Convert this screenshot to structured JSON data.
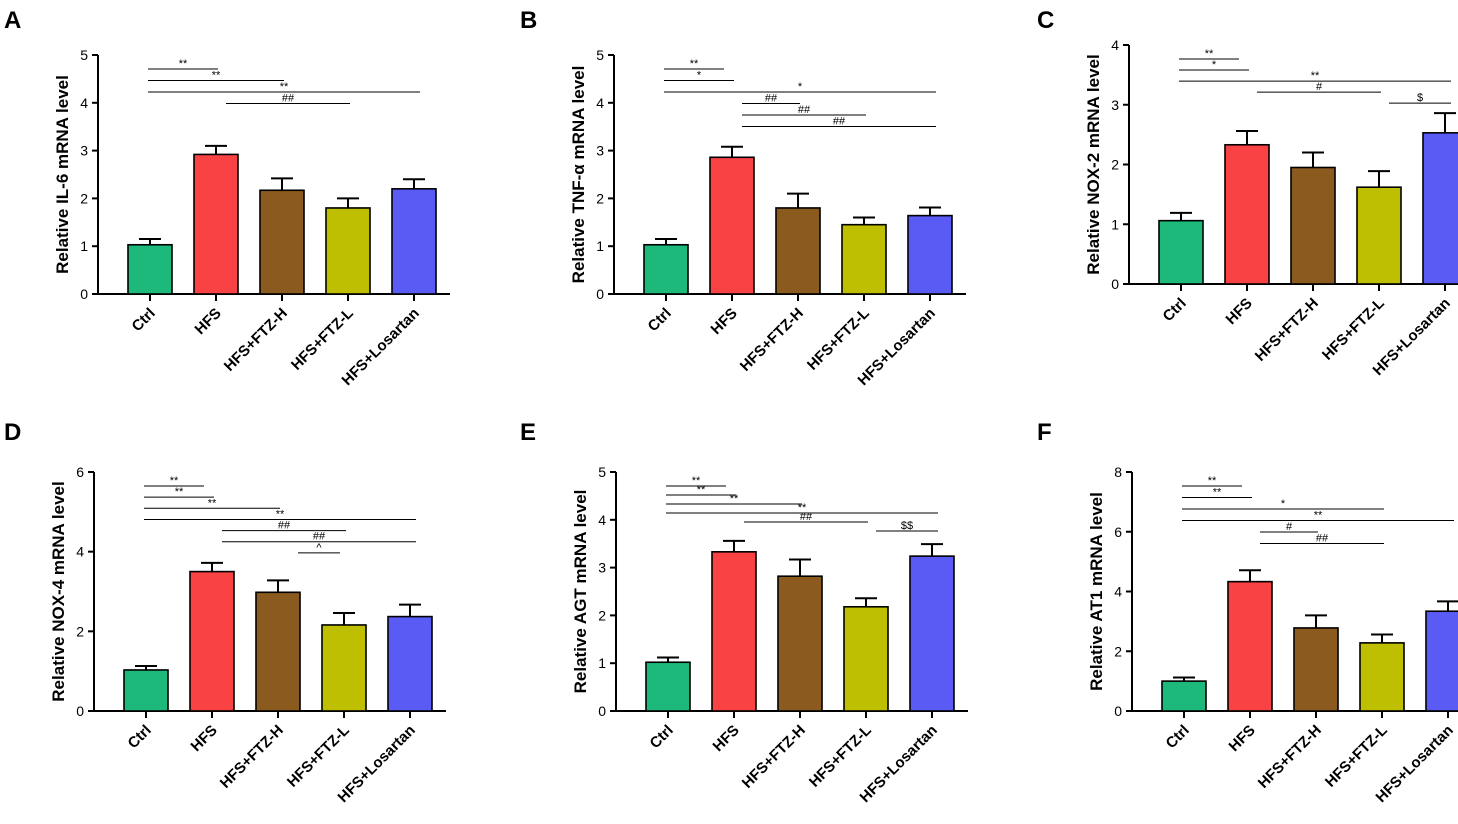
{
  "colors": {
    "Ctrl": "#1DB97A",
    "HFS": "#F94243",
    "HFS+FTZ-H": "#8B5A1E",
    "HFS+FTZ-L": "#BDBF00",
    "HFS+Losartan": "#5A5AF5"
  },
  "chart_data": [
    {
      "panel": "A",
      "type": "bar",
      "categories": [
        "Ctrl",
        "HFS",
        "HFS+FTZ-H",
        "HFS+FTZ-L",
        "HFS+Losartan"
      ],
      "values": [
        1.03,
        2.92,
        2.17,
        1.8,
        2.2
      ],
      "errors": [
        0.12,
        0.18,
        0.25,
        0.2,
        0.2
      ],
      "ylabel": "Relative IL-6 mRNA level",
      "ylim": [
        0,
        5
      ],
      "yticks": [
        0,
        1,
        2,
        3,
        4,
        5
      ],
      "annotations": [
        {
          "from": 0,
          "to": 2,
          "label": "**"
        },
        {
          "from": 0,
          "to": 3,
          "label": "**"
        },
        {
          "from": 0,
          "to": 5,
          "label": "**"
        },
        {
          "from": 2,
          "to": 4,
          "label": "##"
        }
      ]
    },
    {
      "panel": "B",
      "type": "bar",
      "categories": [
        "Ctrl",
        "HFS",
        "HFS+FTZ-H",
        "HFS+FTZ-L",
        "HFS+Losartan"
      ],
      "values": [
        1.03,
        2.86,
        1.8,
        1.45,
        1.64
      ],
      "errors": [
        0.12,
        0.22,
        0.3,
        0.15,
        0.17
      ],
      "ylabel": "Relative TNF-α mRNA level",
      "ylim": [
        0,
        5
      ],
      "yticks": [
        0,
        1,
        2,
        3,
        4,
        5
      ],
      "annotations": [
        {
          "from": 0,
          "to": 1,
          "label": "**"
        },
        {
          "from": 0,
          "to": 2,
          "label": "*"
        },
        {
          "from": 0,
          "to": 5,
          "label": "*"
        },
        {
          "from": 2,
          "to": 3,
          "label": "##"
        },
        {
          "from": 2,
          "to": 4,
          "label": "##"
        },
        {
          "from": 2,
          "to": 5,
          "label": "##"
        }
      ]
    },
    {
      "panel": "C",
      "type": "bar",
      "categories": [
        "Ctrl",
        "HFS",
        "HFS+FTZ-H",
        "HFS+FTZ-L",
        "HFS+Losartan"
      ],
      "values": [
        1.06,
        2.33,
        1.95,
        1.62,
        2.53
      ],
      "errors": [
        0.13,
        0.23,
        0.25,
        0.27,
        0.33
      ],
      "ylabel": "Relative NOX-2 mRNA level",
      "ylim": [
        0,
        4
      ],
      "yticks": [
        0,
        1,
        2,
        3,
        4
      ],
      "annotations": [
        {
          "from": 0,
          "to": 1,
          "label": "**"
        },
        {
          "from": 0,
          "to": 2,
          "label": "*"
        },
        {
          "from": 0,
          "to": 5,
          "label": "**"
        },
        {
          "from": 2,
          "to": 4,
          "label": "#"
        },
        {
          "from": 4,
          "to": 5,
          "label": "$"
        }
      ]
    },
    {
      "panel": "D",
      "type": "bar",
      "categories": [
        "Ctrl",
        "HFS",
        "HFS+FTZ-H",
        "HFS+FTZ-L",
        "HFS+Losartan"
      ],
      "values": [
        1.03,
        3.5,
        2.98,
        2.16,
        2.37
      ],
      "errors": [
        0.1,
        0.22,
        0.3,
        0.3,
        0.3
      ],
      "ylabel": "Relative NOX-4 mRNA level",
      "ylim": [
        0,
        6
      ],
      "yticks": [
        0,
        2,
        4,
        6
      ],
      "annotations": [
        {
          "from": 0,
          "to": 1,
          "label": "**"
        },
        {
          "from": 0,
          "to": 2,
          "label": "**"
        },
        {
          "from": 0,
          "to": 3,
          "label": "**"
        },
        {
          "from": 0,
          "to": 5,
          "label": "**"
        },
        {
          "from": 2,
          "to": 4,
          "label": "##"
        },
        {
          "from": 2,
          "to": 5,
          "label": "##"
        },
        {
          "from": 3,
          "to": 4,
          "label": "^"
        }
      ]
    },
    {
      "panel": "E",
      "type": "bar",
      "categories": [
        "Ctrl",
        "HFS",
        "HFS+FTZ-H",
        "HFS+FTZ-L",
        "HFS+Losartan"
      ],
      "values": [
        1.02,
        3.33,
        2.82,
        2.18,
        3.24
      ],
      "errors": [
        0.1,
        0.23,
        0.35,
        0.18,
        0.25
      ],
      "ylabel": "Relative AGT mRNA level",
      "ylim": [
        0,
        5
      ],
      "yticks": [
        0,
        1,
        2,
        3,
        4,
        5
      ],
      "annotations": [
        {
          "from": 0,
          "to": 1,
          "label": "**"
        },
        {
          "from": 0,
          "to": 2,
          "label": "**"
        },
        {
          "from": 0,
          "to": 3,
          "label": "**"
        },
        {
          "from": 0,
          "to": 5,
          "label": "**"
        },
        {
          "from": 2,
          "to": 4,
          "label": "##"
        },
        {
          "from": 4,
          "to": 5,
          "label": "$$"
        }
      ]
    },
    {
      "panel": "F",
      "type": "bar",
      "categories": [
        "Ctrl",
        "HFS",
        "HFS+FTZ-H",
        "HFS+FTZ-L",
        "HFS+Losartan"
      ],
      "values": [
        1.0,
        4.33,
        2.78,
        2.28,
        3.34
      ],
      "errors": [
        0.12,
        0.38,
        0.42,
        0.28,
        0.33
      ],
      "ylabel": "Relative AT1 mRNA level",
      "ylim": [
        0,
        8
      ],
      "yticks": [
        0,
        2,
        4,
        6,
        8
      ],
      "annotations": [
        {
          "from": 0,
          "to": 1,
          "label": "**"
        },
        {
          "from": 0,
          "to": 2,
          "label": "**"
        },
        {
          "from": 0,
          "to": 4,
          "label": "*"
        },
        {
          "from": 0,
          "to": 5,
          "label": "**"
        },
        {
          "from": 2,
          "to": 3,
          "label": "#"
        },
        {
          "from": 2,
          "to": 4,
          "label": "##"
        }
      ]
    }
  ]
}
